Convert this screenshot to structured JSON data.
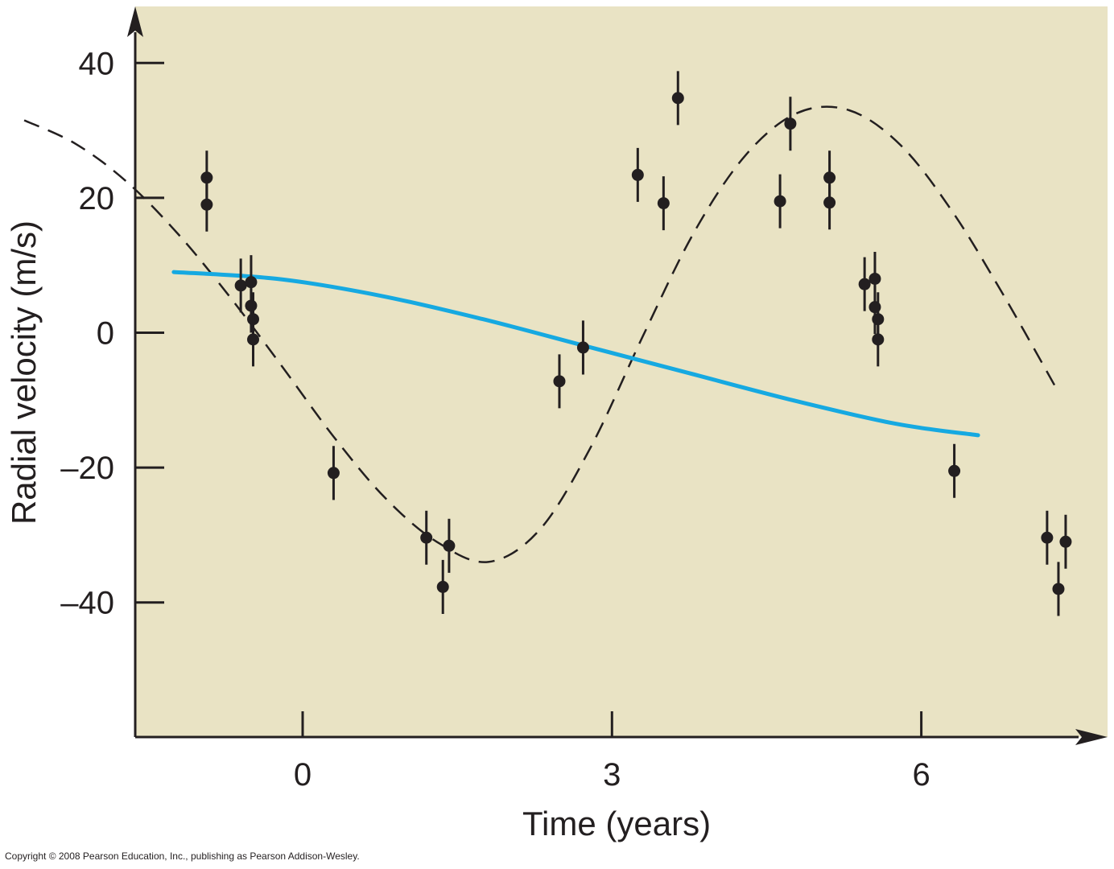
{
  "colors": {
    "plot_background": "#e9e3c4",
    "axis": "#231f20",
    "points": "#231f20",
    "dashed_fit": "#231f20",
    "solid_fit": "#16a9e1"
  },
  "copyright": "Copyright © 2008 Pearson Education, Inc., publishing as Pearson Addison-Wesley.",
  "chart_data": {
    "type": "scatter",
    "title": "",
    "xlabel": "Time (years)",
    "ylabel": "Radial velocity (m/s)",
    "xlim": [
      -2.7,
      7.6
    ],
    "ylim": [
      -60,
      48
    ],
    "x_ticks": [
      0,
      3,
      6
    ],
    "x_tick_labels": [
      "0",
      "3",
      "6"
    ],
    "y_ticks": [
      40,
      20,
      0,
      -20,
      -40
    ],
    "y_tick_labels": [
      "40",
      "20",
      "0",
      "–20",
      "–40"
    ],
    "grid": false,
    "legend": "none",
    "series": [
      {
        "type": "scatter_with_errorbars",
        "points": [
          {
            "x": -0.93,
            "y": 23.0,
            "err": 4
          },
          {
            "x": -0.93,
            "y": 19.0,
            "err": 4
          },
          {
            "x": -0.6,
            "y": 7.0,
            "err": 4
          },
          {
            "x": -0.5,
            "y": 7.5,
            "err": 4
          },
          {
            "x": -0.5,
            "y": 4.0,
            "err": 4
          },
          {
            "x": -0.48,
            "y": 2.0,
            "err": 4
          },
          {
            "x": -0.48,
            "y": -1.0,
            "err": 4
          },
          {
            "x": 0.3,
            "y": -20.8,
            "err": 4
          },
          {
            "x": 1.2,
            "y": -30.4,
            "err": 4
          },
          {
            "x": 1.36,
            "y": -37.7,
            "err": 4
          },
          {
            "x": 1.42,
            "y": -31.6,
            "err": 4
          },
          {
            "x": 2.49,
            "y": -7.2,
            "err": 4
          },
          {
            "x": 2.72,
            "y": -2.2,
            "err": 4
          },
          {
            "x": 3.25,
            "y": 23.4,
            "err": 4
          },
          {
            "x": 3.5,
            "y": 19.2,
            "err": 4
          },
          {
            "x": 3.64,
            "y": 34.8,
            "err": 4
          },
          {
            "x": 4.63,
            "y": 19.5,
            "err": 4
          },
          {
            "x": 4.73,
            "y": 31.0,
            "err": 4
          },
          {
            "x": 5.11,
            "y": 23.0,
            "err": 4
          },
          {
            "x": 5.11,
            "y": 19.3,
            "err": 4
          },
          {
            "x": 5.45,
            "y": 7.2,
            "err": 4
          },
          {
            "x": 5.55,
            "y": 8.0,
            "err": 4
          },
          {
            "x": 5.55,
            "y": 3.8,
            "err": 4
          },
          {
            "x": 5.58,
            "y": 2.0,
            "err": 4
          },
          {
            "x": 5.58,
            "y": -1.0,
            "err": 4
          },
          {
            "x": 6.32,
            "y": -20.5,
            "err": 4
          },
          {
            "x": 7.22,
            "y": -30.4,
            "err": 4
          },
          {
            "x": 7.33,
            "y": -38.0,
            "err": 4
          },
          {
            "x": 7.4,
            "y": -31.0,
            "err": 4
          }
        ]
      },
      {
        "type": "line",
        "style": "dashed",
        "x": [
          -2.7,
          -2.2,
          -1.7,
          -1.2,
          -0.7,
          -0.2,
          0.3,
          0.8,
          1.3,
          1.8,
          2.3,
          2.8,
          3.3,
          3.8,
          4.3,
          4.8,
          5.3,
          5.8,
          6.3,
          6.8,
          7.3
        ],
        "y": [
          31.5,
          28.0,
          22.3,
          14.5,
          5.2,
          -5.0,
          -15.4,
          -24.5,
          -31.0,
          -34.0,
          -29.2,
          -16.8,
          -0.5,
          15.0,
          26.4,
          32.6,
          33.0,
          27.8,
          18.0,
          5.5,
          -8.0
        ]
      },
      {
        "type": "line",
        "style": "solid",
        "x": [
          -1.25,
          -0.25,
          0.75,
          1.75,
          2.75,
          3.75,
          4.75,
          5.75,
          6.55
        ],
        "y": [
          9.0,
          8.0,
          5.5,
          2.0,
          -2.0,
          -6.0,
          -10.0,
          -13.5,
          -15.2
        ]
      }
    ]
  }
}
